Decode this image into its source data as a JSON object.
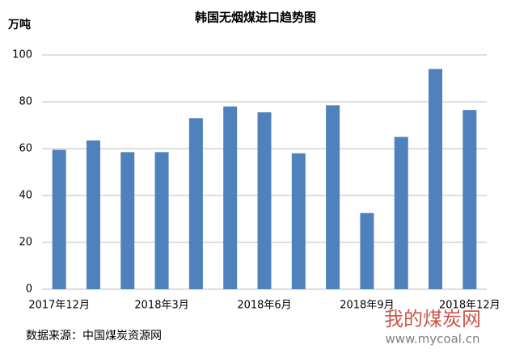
{
  "chart_data": {
    "type": "bar",
    "title": "韩国无烟煤进口趋势图",
    "y_label": "万吨",
    "categories": [
      "2017年12月",
      null,
      null,
      "2018年3月",
      null,
      null,
      "2018年6月",
      null,
      null,
      "2018年9月",
      null,
      null,
      "2018年12月"
    ],
    "values": [
      59.5,
      63.5,
      58.5,
      58.5,
      73,
      78,
      75.5,
      58,
      78.5,
      32.5,
      65,
      94,
      76.5
    ],
    "color": "#4f81bd",
    "ylim": [
      0,
      100
    ],
    "yticks": [
      0,
      20,
      40,
      60,
      80,
      100
    ],
    "grid": true,
    "source": "数据来源：中国煤炭资源网"
  },
  "watermark": {
    "name": "我的煤炭网",
    "url": "www.mycoal.cn"
  }
}
